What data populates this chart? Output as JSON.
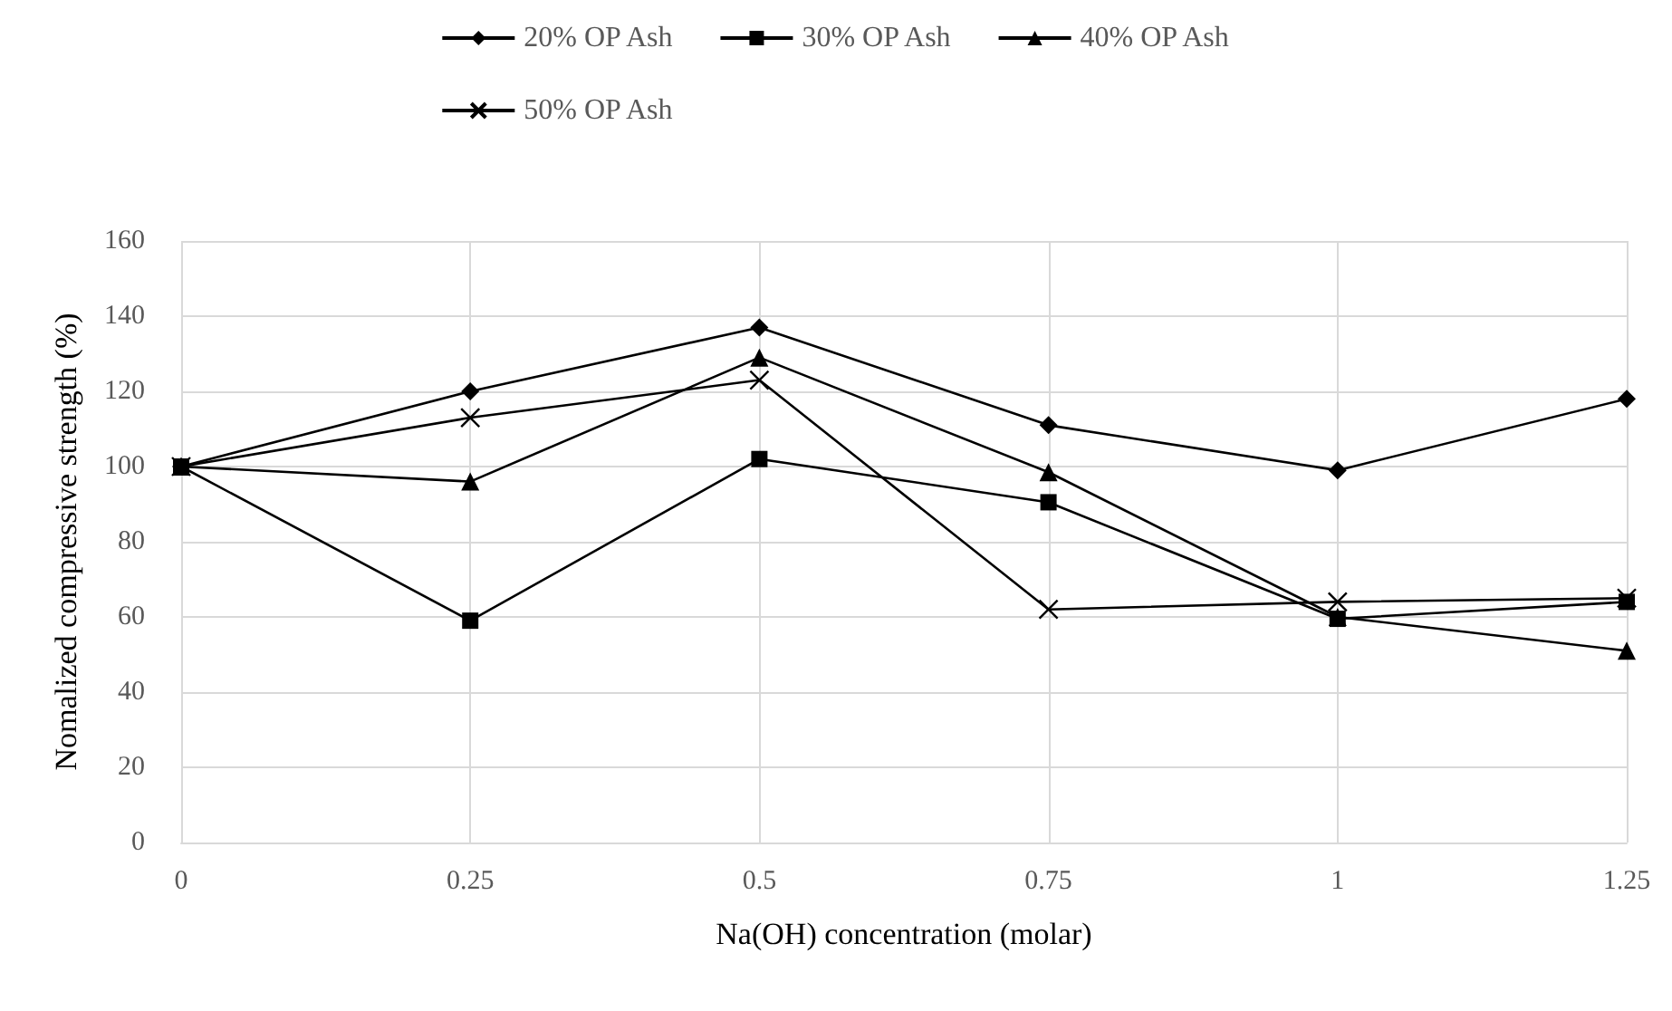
{
  "chart_data": {
    "type": "line",
    "xlabel": "Na(OH) concentration (molar)",
    "ylabel": "Nomalized compressive strength (%)",
    "categories": [
      "0",
      "0.25",
      "0.5",
      "0.75",
      "1",
      "1.25"
    ],
    "series": [
      {
        "name": "20% OP Ash",
        "color": "#000000",
        "marker": "diamond",
        "values": [
          100,
          120,
          137,
          111,
          99,
          118
        ]
      },
      {
        "name": "30% OP Ash",
        "color": "#000000",
        "marker": "square",
        "values": [
          100,
          59,
          102,
          90.5,
          59.5,
          64
        ]
      },
      {
        "name": "40% OP Ash",
        "color": "#000000",
        "marker": "triangle",
        "values": [
          100,
          96,
          129,
          98.5,
          60,
          51
        ]
      },
      {
        "name": "50% OP Ash",
        "color": "#000000",
        "marker": "cross",
        "values": [
          100,
          113,
          123,
          62,
          64,
          65
        ]
      }
    ],
    "ylim": [
      0,
      160
    ],
    "yticks": [
      0,
      20,
      40,
      60,
      80,
      100,
      120,
      140,
      160
    ],
    "grid": true,
    "legend": "top",
    "line_style": "solid"
  }
}
